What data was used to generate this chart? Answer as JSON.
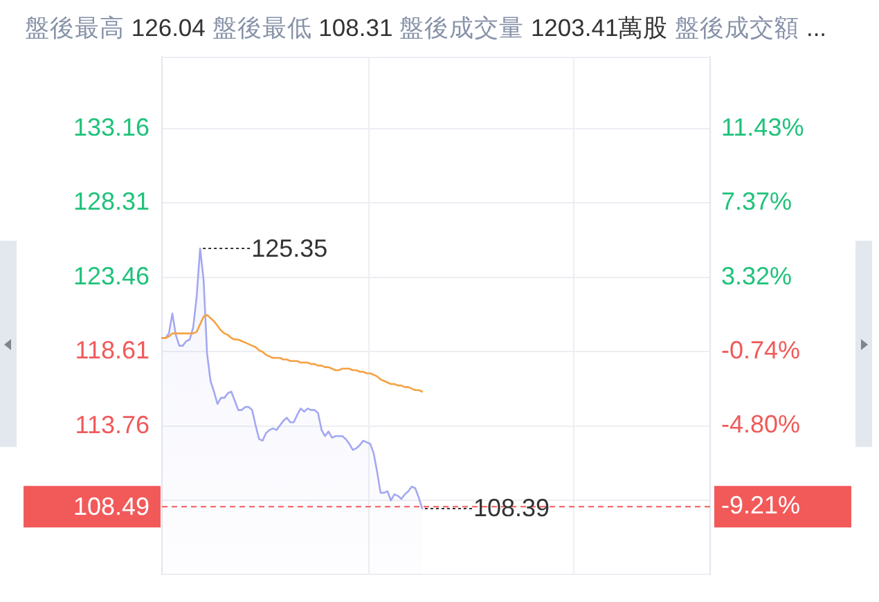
{
  "chart_data": {
    "type": "line",
    "title": "盤後最高 126.04 盤後最低 108.31 盤後成交量 1203.41萬股 盤後成交額 ...",
    "categories": [
      null,
      null,
      null,
      null,
      null,
      null,
      null,
      null,
      null,
      null,
      null,
      null,
      null,
      null,
      null,
      null,
      null,
      null,
      null,
      null,
      null,
      null,
      null,
      null,
      null,
      null,
      null,
      null,
      null,
      null,
      null,
      null,
      null,
      null,
      null,
      null,
      null,
      null,
      null,
      null,
      null,
      null,
      null,
      null,
      null,
      null,
      null,
      null,
      null,
      null,
      null,
      null,
      null,
      null,
      null,
      null,
      null,
      null,
      null,
      null,
      null,
      null,
      null,
      null,
      null,
      null,
      null,
      null,
      null,
      null,
      null,
      null,
      null,
      null,
      null,
      null,
      null,
      null,
      null,
      null,
      null,
      null,
      null,
      null,
      null,
      null,
      null,
      null,
      null,
      null,
      null,
      null,
      null,
      null,
      null,
      null,
      null,
      null,
      null,
      null,
      null,
      null,
      null,
      null,
      null,
      null,
      null,
      null,
      null,
      null,
      null,
      null,
      null,
      null,
      null,
      null,
      null,
      null,
      null,
      null,
      null,
      null,
      null,
      null,
      null,
      null,
      null,
      null,
      null,
      null,
      null,
      null,
      null,
      null,
      null,
      null,
      null,
      null,
      null,
      null,
      null,
      null,
      null,
      null,
      null,
      null,
      null,
      null,
      null,
      null,
      null,
      null,
      null,
      null,
      null,
      null,
      null,
      null,
      null
    ],
    "series": [
      {
        "type": "area",
        "color": "#a3a8f0",
        "values": [
          119.5,
          119.5,
          119.8,
          121.1,
          119.7,
          119.0,
          119.0,
          119.3,
          119.4,
          120.2,
          122.2,
          125.35,
          123.3,
          118.5,
          116.7,
          116.0,
          115.2,
          115.6,
          115.6,
          115.9,
          116.0,
          115.4,
          114.8,
          114.8,
          115.0,
          115.0,
          114.8,
          113.8,
          112.9,
          112.8,
          113.3,
          113.5,
          113.6,
          113.5,
          113.8,
          114.1,
          114.3,
          114.0,
          114.0,
          114.5,
          114.9,
          114.7,
          114.9,
          114.8,
          114.8,
          114.6,
          113.5,
          113.1,
          113.4,
          113.0,
          113.1,
          113.1,
          113.1,
          112.9,
          112.6,
          112.2,
          112.3,
          112.5,
          112.8,
          112.7,
          112.6,
          112.0,
          110.8,
          109.4,
          109.4,
          109.5,
          108.9,
          109.3,
          109.2,
          109.0,
          109.3,
          109.5,
          109.8,
          109.7,
          109.1,
          108.39,
          null,
          null,
          null,
          null,
          null,
          null,
          null,
          null,
          null,
          null,
          null,
          null,
          null,
          null,
          null,
          null,
          null,
          null,
          null,
          null,
          null,
          null,
          null,
          null,
          null,
          null,
          null,
          null,
          null,
          null,
          null,
          null,
          null,
          null,
          null,
          null,
          null,
          null,
          null,
          null,
          null,
          null,
          null,
          null,
          null,
          null,
          null,
          null,
          null,
          null,
          null,
          null,
          null,
          null,
          null,
          null,
          null,
          null,
          null,
          null,
          null,
          null,
          null,
          null,
          null,
          null,
          null,
          null,
          null,
          null,
          null,
          null,
          null,
          null,
          null,
          null,
          null,
          null,
          null,
          null,
          null,
          null,
          null
        ],
        "value_labels": [
          null,
          null,
          null,
          null,
          null,
          null,
          null,
          null,
          null,
          null,
          null,
          "125.35",
          null,
          null,
          null,
          null,
          null,
          null,
          null,
          null,
          null,
          null,
          null,
          null,
          null,
          null,
          null,
          null,
          null,
          null,
          null,
          null,
          null,
          null,
          null,
          null,
          null,
          null,
          null,
          null,
          null,
          null,
          null,
          null,
          null,
          null,
          null,
          null,
          null,
          null,
          null,
          null,
          null,
          null,
          null,
          null,
          null,
          null,
          null,
          null,
          null,
          null,
          null,
          null,
          null,
          null,
          null,
          null,
          null,
          null,
          null,
          null,
          null,
          null,
          null,
          "108.39",
          null,
          null,
          null,
          null,
          null,
          null,
          null,
          null,
          null,
          null,
          null,
          null,
          null,
          null,
          null,
          null,
          null,
          null,
          null,
          null,
          null,
          null,
          null,
          null,
          null,
          null,
          null,
          null,
          null,
          null,
          null,
          null,
          null,
          null,
          null,
          null,
          null,
          null,
          null,
          null,
          null,
          null,
          null,
          null,
          null,
          null,
          null,
          null,
          null,
          null,
          null,
          null,
          null,
          null,
          null,
          null,
          null,
          null,
          null,
          null,
          null,
          null,
          null,
          null,
          null,
          null,
          null,
          null,
          null,
          null,
          null,
          null,
          null,
          null,
          null,
          null,
          null,
          null,
          null,
          null,
          null,
          null,
          null
        ]
      },
      {
        "type": "line",
        "color": "#f5a142",
        "values": [
          119.5,
          119.5,
          119.6,
          119.8,
          119.8,
          119.8,
          119.8,
          119.8,
          119.8,
          119.8,
          119.9,
          120.4,
          120.9,
          121.0,
          120.8,
          120.6,
          120.3,
          120.0,
          119.8,
          119.7,
          119.5,
          119.4,
          119.4,
          119.3,
          119.2,
          119.1,
          119.0,
          118.9,
          118.7,
          118.6,
          118.4,
          118.3,
          118.2,
          118.2,
          118.2,
          118.1,
          118.1,
          118.0,
          118.0,
          118.0,
          117.9,
          117.9,
          117.9,
          117.8,
          117.8,
          117.7,
          117.7,
          117.6,
          117.6,
          117.5,
          117.4,
          117.4,
          117.5,
          117.5,
          117.5,
          117.4,
          117.4,
          117.3,
          117.3,
          117.2,
          117.2,
          117.1,
          117.0,
          116.8,
          116.7,
          116.6,
          116.5,
          116.5,
          116.4,
          116.4,
          116.3,
          116.3,
          116.2,
          116.1,
          116.1,
          116.0,
          null,
          null,
          null,
          null,
          null,
          null,
          null,
          null,
          null,
          null,
          null,
          null,
          null,
          null,
          null,
          null,
          null,
          null,
          null,
          null,
          null,
          null,
          null,
          null,
          null,
          null,
          null,
          null,
          null,
          null,
          null,
          null,
          null,
          null,
          null,
          null,
          null,
          null,
          null,
          null,
          null,
          null,
          null,
          null,
          null,
          null,
          null,
          null,
          null,
          null,
          null,
          null,
          null,
          null,
          null,
          null,
          null,
          null,
          null,
          null,
          null,
          null,
          null,
          null,
          null,
          null,
          null,
          null,
          null,
          null,
          null,
          null,
          null,
          null,
          null,
          null,
          null,
          null,
          null,
          null,
          null,
          null,
          null
        ]
      }
    ],
    "ylim": [
      104.06,
      137.86
    ],
    "yticks": [
      {
        "value": 104.06,
        "label": null
      },
      {
        "value": 108.91,
        "label": null
      },
      113.76,
      118.61,
      123.46,
      128.31,
      133.16
    ],
    "y2lim": [
      -12.92,
      15.36
    ],
    "y2ticks": [
      {
        "value": -9.21,
        "label": "-9.21%"
      },
      {
        "value": -4.8,
        "label": "-4.80%"
      },
      {
        "value": -0.74,
        "label": "-0.74%"
      },
      {
        "value": 3.32,
        "label": "3.32%"
      },
      {
        "value": 7.37,
        "label": "7.37%"
      },
      {
        "value": 11.43,
        "label": "11.43%"
      }
    ],
    "ref_lines": [
      {
        "axis": "y",
        "value": 108.49,
        "label": "108.49",
        "color": "#f25a5a",
        "line_style": "dashed"
      }
    ],
    "grid": true,
    "marker": "none"
  }
}
